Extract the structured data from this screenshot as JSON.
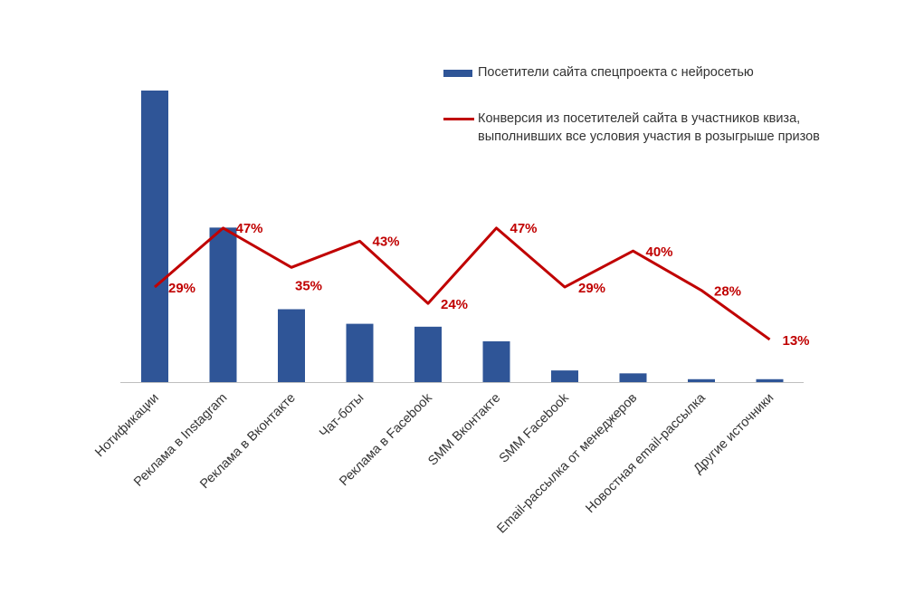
{
  "chart_data": {
    "type": "bar+line",
    "title": "",
    "xlabel": "",
    "ylabel": "",
    "grid": false,
    "legend_position": "top-right",
    "categories": [
      "Нотификации",
      "Реклама в Instagram",
      "Реклама в Вконтакте",
      "Чат-боты",
      "Реклама в Facebook",
      "SMM Вконтакте",
      "SMM Facebook",
      "Email-рассылка от менеджеров",
      "Новостная email-рассылка",
      "Другие источники"
    ],
    "series": [
      {
        "name": "Посетители сайта спецпроекта с нейросетью",
        "type": "bar",
        "color": "#2F5597",
        "values": [
          100,
          53,
          25,
          20,
          19,
          14,
          4,
          3,
          1,
          1
        ],
        "ylim": [
          0,
          100
        ]
      },
      {
        "name": "Конверсия из посетителей сайта в участников квиза, выполнивших все условия участия в розыгрыше призов",
        "type": "line",
        "color": "#C00000",
        "values": [
          29,
          47,
          35,
          43,
          24,
          47,
          29,
          40,
          28,
          13
        ],
        "labels": [
          "29%",
          "47%",
          "35%",
          "43%",
          "24%",
          "47%",
          "29%",
          "40%",
          "28%",
          "13%"
        ],
        "ylim": [
          0,
          89
        ]
      }
    ]
  }
}
